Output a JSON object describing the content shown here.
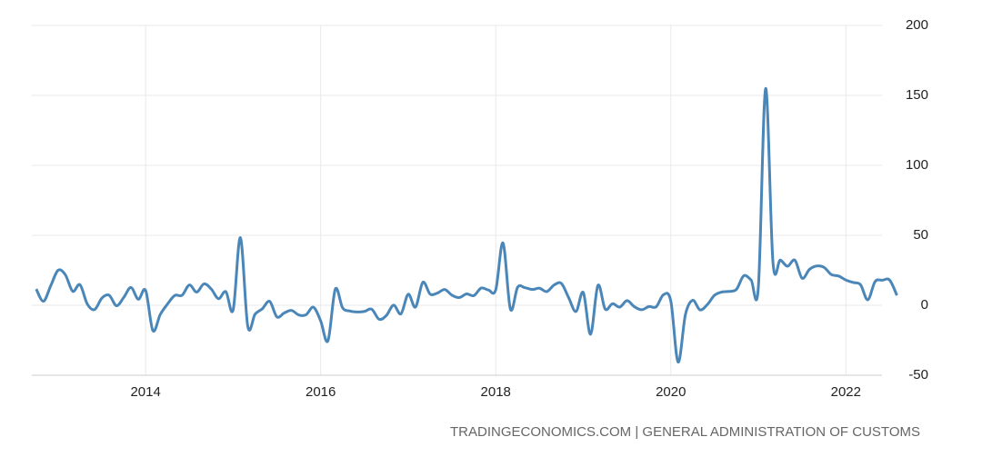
{
  "chart_data": {
    "type": "line",
    "source": "TRADINGECONOMICS.COM | GENERAL ADMINISTRATION OF CUSTOMS",
    "x": [
      2012.75,
      2012.833,
      2012.917,
      2013,
      2013.083,
      2013.167,
      2013.25,
      2013.333,
      2013.417,
      2013.5,
      2013.583,
      2013.667,
      2013.75,
      2013.833,
      2013.917,
      2014,
      2014.083,
      2014.167,
      2014.25,
      2014.333,
      2014.417,
      2014.5,
      2014.583,
      2014.667,
      2014.75,
      2014.833,
      2014.917,
      2015,
      2015.083,
      2015.167,
      2015.25,
      2015.333,
      2015.417,
      2015.5,
      2015.583,
      2015.667,
      2015.75,
      2015.833,
      2015.917,
      2016,
      2016.083,
      2016.167,
      2016.25,
      2016.333,
      2016.417,
      2016.5,
      2016.583,
      2016.667,
      2016.75,
      2016.833,
      2016.917,
      2017,
      2017.083,
      2017.167,
      2017.25,
      2017.333,
      2017.417,
      2017.5,
      2017.583,
      2017.667,
      2017.75,
      2017.833,
      2017.917,
      2018,
      2018.083,
      2018.167,
      2018.25,
      2018.333,
      2018.417,
      2018.5,
      2018.583,
      2018.667,
      2018.75,
      2018.833,
      2018.917,
      2019,
      2019.083,
      2019.167,
      2019.25,
      2019.333,
      2019.417,
      2019.5,
      2019.583,
      2019.667,
      2019.75,
      2019.833,
      2019.917,
      2020,
      2020.083,
      2020.167,
      2020.25,
      2020.333,
      2020.417,
      2020.5,
      2020.583,
      2020.667,
      2020.75,
      2020.833,
      2020.917,
      2021,
      2021.083,
      2021.167,
      2021.25,
      2021.333,
      2021.417,
      2021.5,
      2021.583,
      2021.667,
      2021.75,
      2021.833,
      2021.917,
      2022,
      2022.083,
      2022.167,
      2022.25,
      2022.333,
      2022.417,
      2022.5,
      2022.583
    ],
    "series": [
      {
        "color": "#4a86b8",
        "values": [
          11.6,
          2.9,
          14.1,
          25,
          21.8,
          10,
          14.7,
          1,
          -3.1,
          5.1,
          7.2,
          -0.3,
          5.6,
          12.7,
          4.3,
          10.6,
          -18.1,
          -6.6,
          0.9,
          7,
          7.2,
          14.5,
          9.4,
          15.3,
          11.6,
          4.7,
          9.7,
          -3.3,
          48.3,
          -15,
          -6.4,
          -2.5,
          2.8,
          -8.3,
          -5.5,
          -3.7,
          -6.9,
          -6.8,
          -1.4,
          -11.2,
          -25.4,
          11.5,
          -1.8,
          -4.1,
          -4.8,
          -4.4,
          -2.8,
          -10,
          -7.3,
          0.1,
          -6.1,
          7.9,
          -1.3,
          16.4,
          8,
          8.7,
          11.3,
          7.2,
          5.5,
          8.1,
          6.9,
          12.3,
          10.9,
          11.1,
          44.5,
          -2.7,
          12.9,
          12.6,
          11.3,
          12.2,
          9.8,
          14.5,
          15.6,
          5.4,
          -4.4,
          9.1,
          -20.7,
          14.2,
          -2.7,
          1.1,
          -1.3,
          3.3,
          -1,
          -3.2,
          -0.9,
          -1.1,
          7.6,
          3,
          -40.6,
          -6.6,
          3.5,
          -3.3,
          0.5,
          7.2,
          9.5,
          9.9,
          11.4,
          21.1,
          18.1,
          13,
          154.9,
          30.6,
          32.3,
          27.9,
          32.2,
          19.3,
          25.6,
          28.1,
          27.1,
          22,
          20.9,
          18,
          16.3,
          14.7,
          3.9,
          16.9,
          17.9,
          18,
          7.1
        ]
      }
    ],
    "xlim": [
      2012.7,
      2022.62
    ],
    "xticks": [
      2014,
      2016,
      2018,
      2020,
      2022
    ],
    "ylim": [
      -50,
      200
    ],
    "yticks": [
      -50,
      0,
      50,
      100,
      150,
      200
    ],
    "grid": true
  }
}
